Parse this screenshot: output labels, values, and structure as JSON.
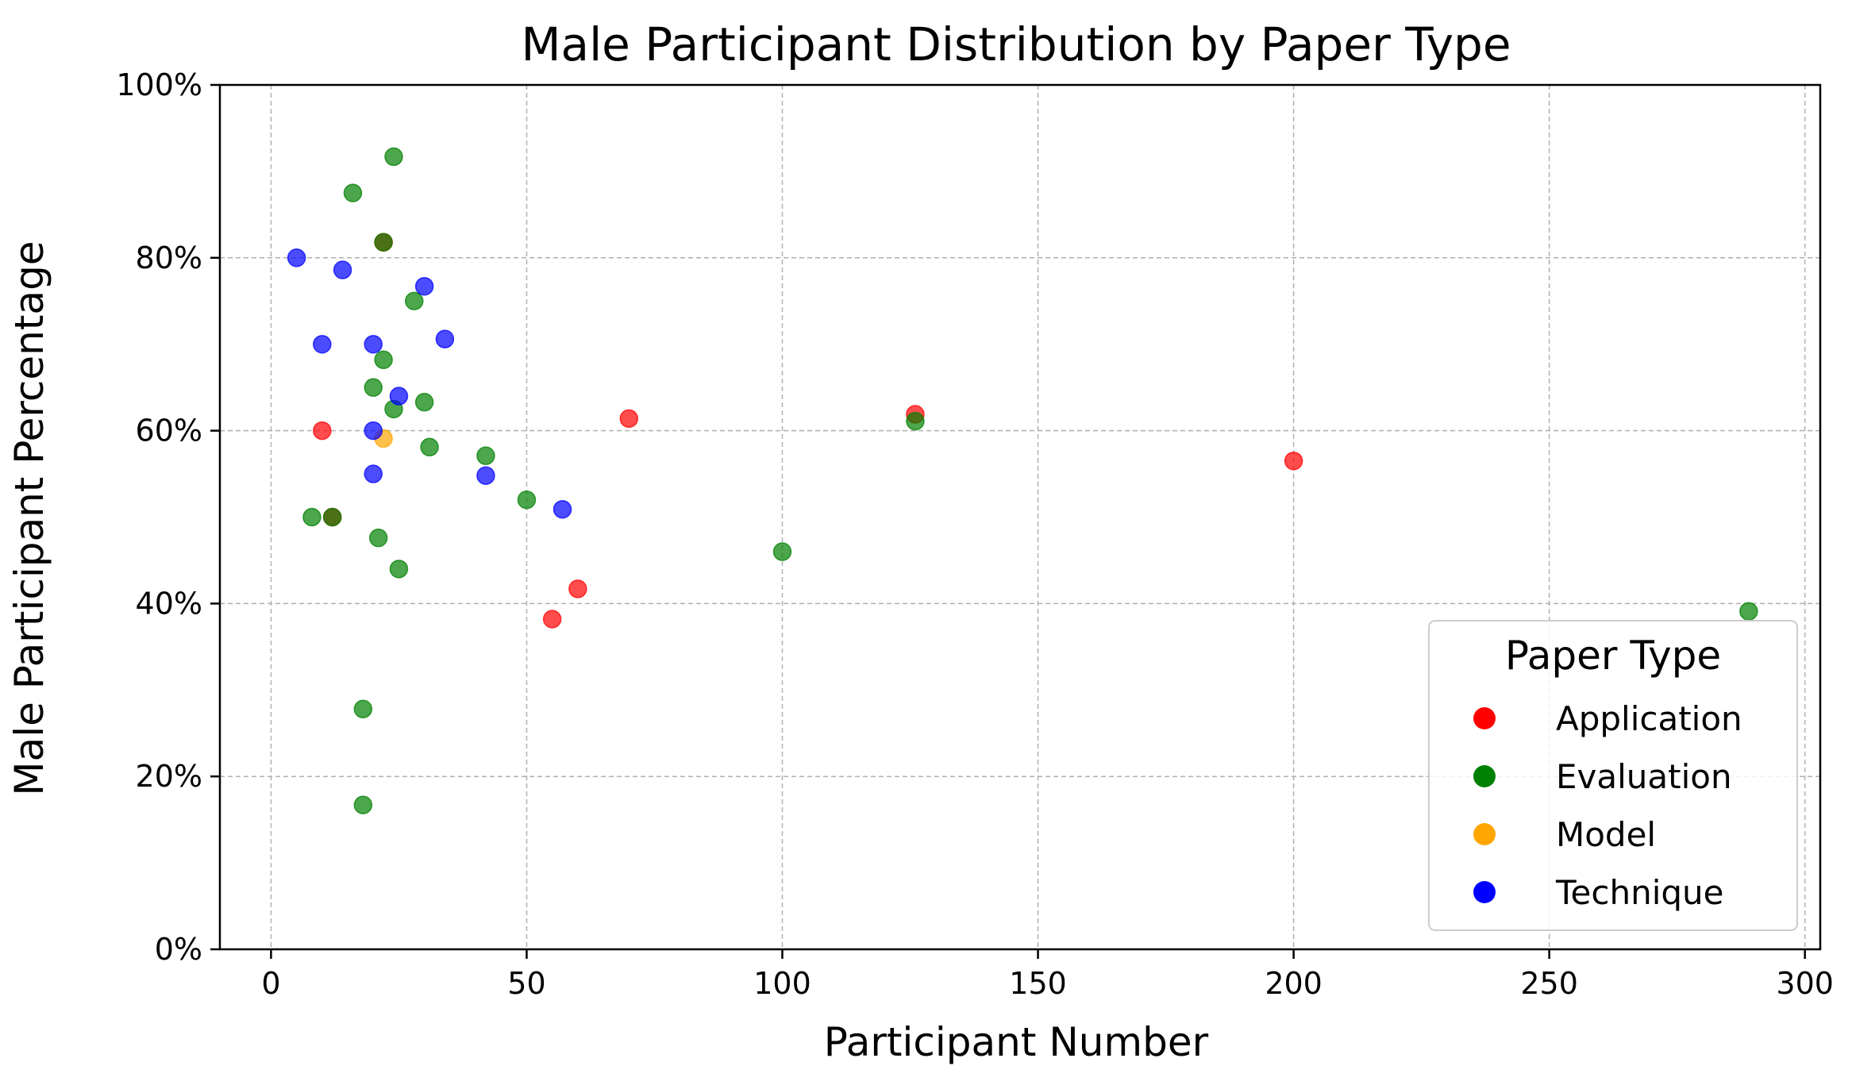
{
  "chart_data": {
    "type": "scatter",
    "title": "Male Participant Distribution by Paper Type",
    "xlabel": "Participant Number",
    "ylabel": "Male Participant Percentage",
    "xlim": [
      -10,
      303
    ],
    "ylim": [
      0,
      1
    ],
    "xticks": [
      0,
      50,
      100,
      150,
      200,
      250,
      300
    ],
    "xtick_labels": [
      "0",
      "50",
      "100",
      "150",
      "200",
      "250",
      "300"
    ],
    "yticks": [
      0,
      0.2,
      0.4,
      0.6,
      0.8,
      1.0
    ],
    "ytick_labels": [
      "0%",
      "20%",
      "40%",
      "60%",
      "80%",
      "100%"
    ],
    "grid": true,
    "legend": {
      "title": "Paper Type",
      "placement": "lower-right"
    },
    "series": [
      {
        "name": "Application",
        "color": "#ff0000",
        "points": [
          {
            "x": 10,
            "y": 0.6
          },
          {
            "x": 12,
            "y": 0.5
          },
          {
            "x": 22,
            "y": 0.818
          },
          {
            "x": 55,
            "y": 0.382
          },
          {
            "x": 60,
            "y": 0.417
          },
          {
            "x": 70,
            "y": 0.614
          },
          {
            "x": 126,
            "y": 0.619
          },
          {
            "x": 200,
            "y": 0.565
          }
        ]
      },
      {
        "name": "Evaluation",
        "color": "#008000",
        "points": [
          {
            "x": 8,
            "y": 0.5
          },
          {
            "x": 12,
            "y": 0.5
          },
          {
            "x": 16,
            "y": 0.875
          },
          {
            "x": 18,
            "y": 0.278
          },
          {
            "x": 18,
            "y": 0.167
          },
          {
            "x": 20,
            "y": 0.65
          },
          {
            "x": 21,
            "y": 0.476
          },
          {
            "x": 22,
            "y": 0.818
          },
          {
            "x": 22,
            "y": 0.682
          },
          {
            "x": 24,
            "y": 0.917
          },
          {
            "x": 24,
            "y": 0.625
          },
          {
            "x": 25,
            "y": 0.44
          },
          {
            "x": 28,
            "y": 0.75
          },
          {
            "x": 30,
            "y": 0.633
          },
          {
            "x": 31,
            "y": 0.581
          },
          {
            "x": 42,
            "y": 0.571
          },
          {
            "x": 50,
            "y": 0.52
          },
          {
            "x": 100,
            "y": 0.46
          },
          {
            "x": 126,
            "y": 0.611
          },
          {
            "x": 289,
            "y": 0.391
          }
        ]
      },
      {
        "name": "Model",
        "color": "#ffa500",
        "points": [
          {
            "x": 22,
            "y": 0.591
          }
        ]
      },
      {
        "name": "Technique",
        "color": "#0000ff",
        "points": [
          {
            "x": 5,
            "y": 0.8
          },
          {
            "x": 10,
            "y": 0.7
          },
          {
            "x": 14,
            "y": 0.786
          },
          {
            "x": 20,
            "y": 0.7
          },
          {
            "x": 20,
            "y": 0.6
          },
          {
            "x": 20,
            "y": 0.55
          },
          {
            "x": 25,
            "y": 0.64
          },
          {
            "x": 30,
            "y": 0.767
          },
          {
            "x": 34,
            "y": 0.706
          },
          {
            "x": 42,
            "y": 0.548
          },
          {
            "x": 57,
            "y": 0.509
          }
        ]
      }
    ]
  }
}
